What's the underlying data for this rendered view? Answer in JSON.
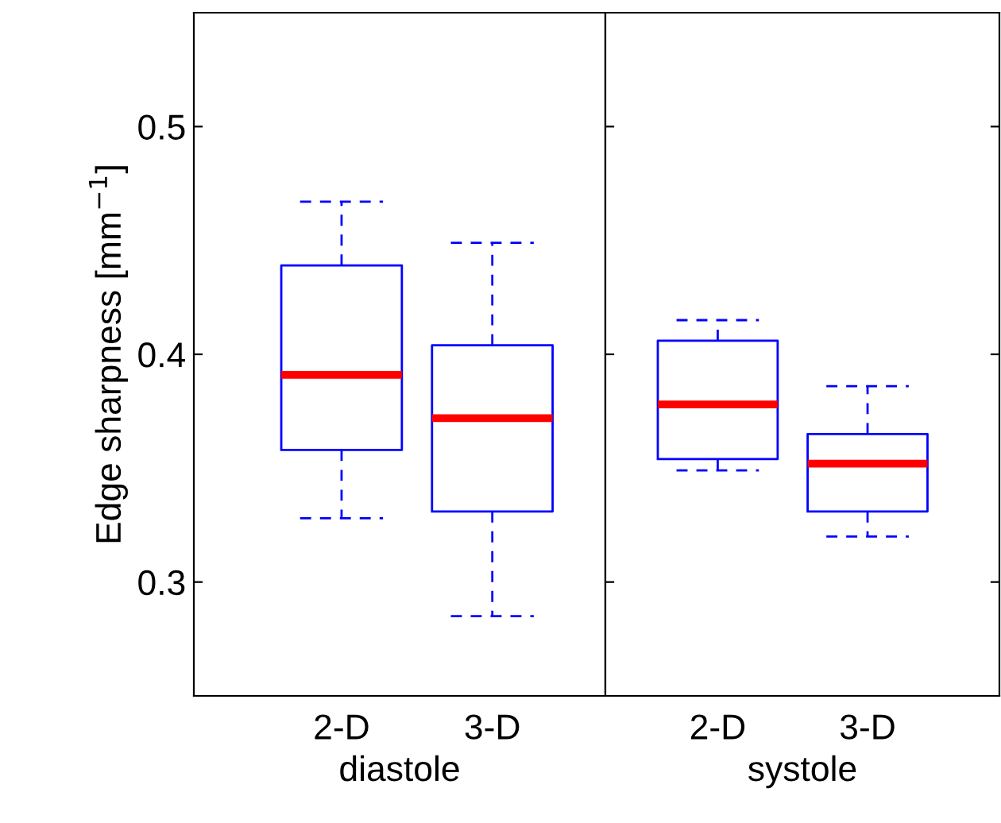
{
  "chart_data": [
    {
      "type": "box",
      "categories": [
        "2-D",
        "3-D"
      ],
      "xlabel": "diastole",
      "ylabel": "Edge sharpness [mm$^{−1}$]",
      "ylim": [
        0.25,
        0.55
      ],
      "yticks": [
        0.3,
        0.4,
        0.5
      ],
      "grid": false,
      "series": [
        {
          "color": "#0000ff",
          "boxes": [
            {
              "low": 0.328,
              "q1": 0.358,
              "median": 0.391,
              "q3": 0.439,
              "high": 0.467
            },
            {
              "low": 0.285,
              "q1": 0.331,
              "median": 0.372,
              "q3": 0.404,
              "high": 0.449
            }
          ]
        }
      ]
    },
    {
      "type": "box",
      "categories": [
        "2-D",
        "3-D"
      ],
      "xlabel": "systole",
      "ylim": [
        0.25,
        0.55
      ],
      "yticks": [
        0.3,
        0.4,
        0.5
      ],
      "tick_labels": "x",
      "grid": false,
      "series": [
        {
          "color": "#0000ff",
          "boxes": [
            {
              "low": 0.349,
              "q1": 0.354,
              "median": 0.378,
              "q3": 0.406,
              "high": 0.415
            },
            {
              "low": 0.32,
              "q1": 0.331,
              "median": 0.352,
              "q3": 0.365,
              "high": 0.386
            }
          ]
        }
      ]
    }
  ]
}
